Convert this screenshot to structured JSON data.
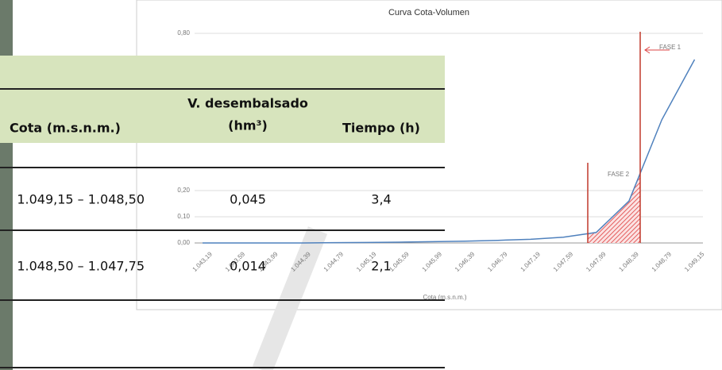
{
  "chart": {
    "type": "line",
    "title": "Curva Cota-Volumen",
    "x_label": "Cota (m.s.n.m.)",
    "categories": [
      "1.043,19",
      "1.043,59",
      "1.043,99",
      "1.044,39",
      "1.044,79",
      "1.045,19",
      "1.045,59",
      "1.045,99",
      "1.046,39",
      "1.046,79",
      "1.047,19",
      "1.047,59",
      "1.047,99",
      "1.048,39",
      "1.048,79",
      "1.049,15"
    ],
    "values": [
      0,
      0,
      0,
      0,
      0.001,
      0.002,
      0.003,
      0.005,
      0.007,
      0.01,
      0.014,
      0.022,
      0.04,
      0.16,
      0.47,
      0.7
    ],
    "color": "#4f81bd",
    "ylim": [
      0,
      0.8
    ],
    "yticks": [
      {
        "value": 0,
        "label": "0,00"
      },
      {
        "value": 0.1,
        "label": "0,10"
      },
      {
        "value": 0.2,
        "label": "0,20"
      },
      {
        "value": 0.8,
        "label": "0,80"
      }
    ],
    "grid": true,
    "annotations": [
      "FASE 1",
      "FASE 2"
    ]
  },
  "table": {
    "header": [
      "Cota (m.s.n.m.)",
      "V. desembalsado",
      "(hm³)",
      "Tiempo (h)"
    ],
    "rows": [
      [
        "1.049,15 – 1.048,50",
        "0,045",
        "3,4"
      ],
      [
        "1.048,50 – 1.047,75",
        "0,014",
        "2,1"
      ]
    ]
  }
}
